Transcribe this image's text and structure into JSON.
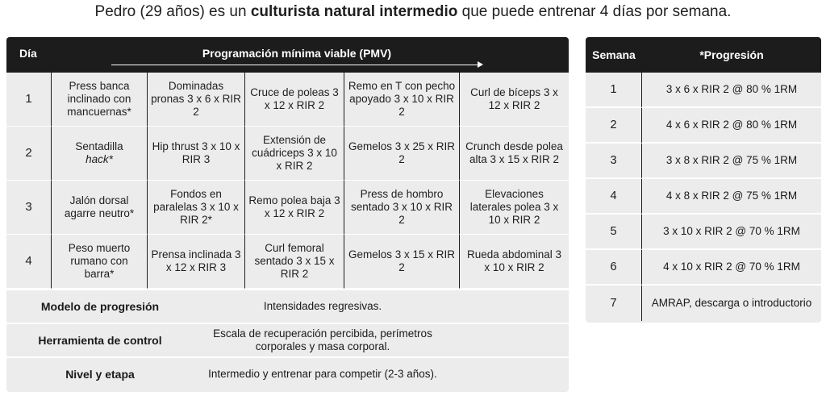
{
  "headline": {
    "pre": "Pedro (29 años) es un ",
    "bold": "culturista natural intermedio",
    "post": " que puede entrenar 4 días por semana."
  },
  "left_table": {
    "col_day": "Día",
    "col_pmv": "Programación mínima viable (PMV)",
    "rows": [
      {
        "day": "1",
        "ex": [
          "Press banca inclinado con mancuernas*",
          "Dominadas pronas 3 x 6 x RIR 2",
          "Cruce de poleas 3 x 12 x RIR 2",
          "Remo en T con pecho apoyado 3 x 10 x RIR 2",
          "Curl de bíceps 3 x 12 x RIR 2"
        ]
      },
      {
        "day": "2",
        "ex": [
          "Sentadilla",
          "Hip thrust 3 x 10 x RIR 3",
          "Extensión de cuádriceps 3 x 10 x RIR 2",
          "Gemelos 3 x 25 x RIR 2",
          "Crunch desde polea alta 3 x 15 x RIR 2"
        ]
      },
      {
        "day": "3",
        "ex": [
          "Jalón dorsal agarre neutro*",
          "Fondos en paralelas 3 x 10 x RIR 2*",
          "Remo polea baja 3 x 12 x RIR 2",
          "Press de hombro sentado 3 x 10 x RIR 2",
          "Elevaciones laterales polea 3 x 10 x RIR 2"
        ]
      },
      {
        "day": "4",
        "ex": [
          "Peso muerto rumano con barra*",
          "Prensa inclinada 3 x 12 x RIR 3",
          "Curl femoral sentado 3 x 15 x RIR 2",
          "Gemelos 3 x 15 x RIR 2",
          "Rueda abdominal 3 x 10 x RIR 2"
        ]
      }
    ],
    "hack": "hack*",
    "info": [
      {
        "label": "Modelo de progresión",
        "value": "Intensidades regresivas."
      },
      {
        "label": "Herramienta de control",
        "value": "Escala de recuperación percibida, perímetros corporales y masa corporal."
      },
      {
        "label": "Nivel y etapa",
        "value": "Intermedio y entrenar para competir (2-3 años)."
      }
    ]
  },
  "right_table": {
    "col_week": "Semana",
    "col_prog": "*Progresión",
    "rows": [
      {
        "week": "1",
        "prog": "3 x 6 x RIR 2 @ 80 % 1RM"
      },
      {
        "week": "2",
        "prog": "4 x 6 x RIR 2 @ 80 % 1RM"
      },
      {
        "week": "3",
        "prog": "3 x 8 x RIR 2 @ 75 % 1RM"
      },
      {
        "week": "4",
        "prog": "4 x 8 x RIR 2 @ 75 % 1RM"
      },
      {
        "week": "5",
        "prog": "3 x 10 x RIR 2 @ 70 % 1RM"
      },
      {
        "week": "6",
        "prog": "4 x 10 x RIR 2 @ 70 % 1RM"
      },
      {
        "week": "7",
        "prog": "AMRAP, descarga o introductorio"
      }
    ]
  }
}
